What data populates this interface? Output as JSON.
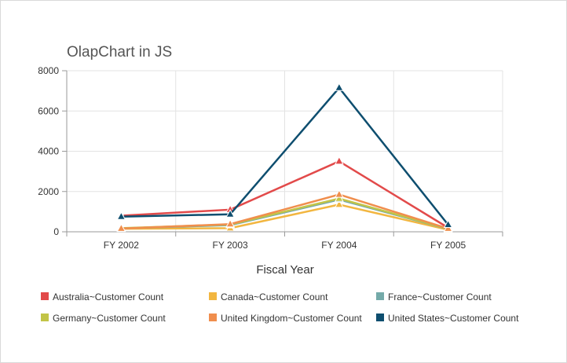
{
  "chart_data": {
    "type": "line",
    "title": "OlapChart in JS",
    "xlabel": "Fiscal Year",
    "ylabel": "",
    "categories": [
      "FY 2002",
      "FY 2003",
      "FY 2004",
      "FY 2005"
    ],
    "ylim": [
      0,
      8000
    ],
    "yticks": [
      "0",
      "2000",
      "4000",
      "6000",
      "8000"
    ],
    "grid": true,
    "legend_position": "bottom",
    "marker": "triangle",
    "series": [
      {
        "name": "Australia~Customer Count",
        "color": "#e24a4a",
        "values": [
          800,
          1100,
          3500,
          200
        ]
      },
      {
        "name": "Canada~Customer Count",
        "color": "#f2b640",
        "values": [
          150,
          180,
          1350,
          100
        ]
      },
      {
        "name": "France~Customer Count",
        "color": "#74aaa9",
        "values": [
          170,
          330,
          1600,
          140
        ]
      },
      {
        "name": "Germany~Customer Count",
        "color": "#c2c447",
        "values": [
          180,
          360,
          1650,
          150
        ]
      },
      {
        "name": "United Kingdom~Customer Count",
        "color": "#f08e4d",
        "values": [
          160,
          380,
          1850,
          160
        ]
      },
      {
        "name": "United States~Customer Count",
        "color": "#0e4e6f",
        "values": [
          750,
          870,
          7150,
          350
        ]
      }
    ]
  }
}
